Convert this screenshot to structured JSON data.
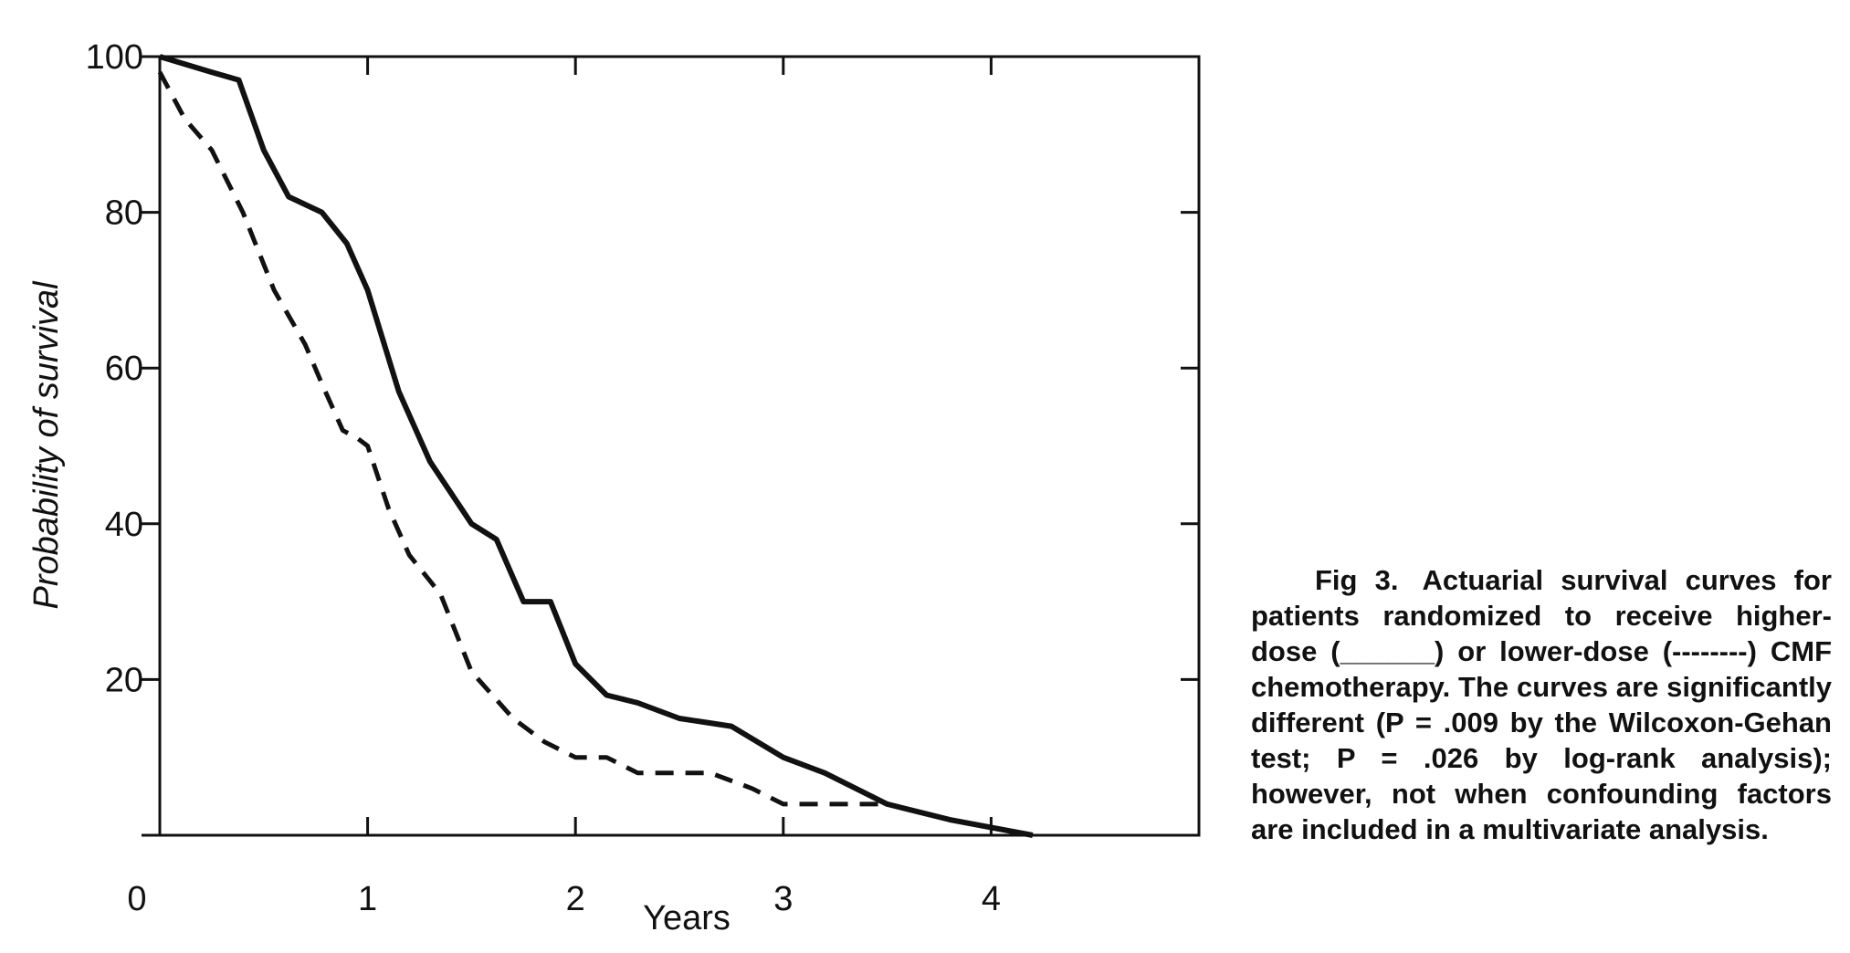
{
  "chart_data": {
    "type": "line",
    "title": "",
    "xlabel": "Years",
    "ylabel": "Probability of survival",
    "xlim": [
      0,
      5
    ],
    "ylim": [
      0,
      100
    ],
    "x_ticks": [
      0,
      1,
      2,
      3,
      4,
      5
    ],
    "x_tick_labels": [
      "0",
      "1",
      "2",
      "3",
      "4"
    ],
    "y_ticks": [
      0,
      20,
      40,
      60,
      80,
      100
    ],
    "y_tick_labels": [
      "20",
      "40",
      "60",
      "80",
      "100"
    ],
    "grid": false,
    "series": [
      {
        "style": "solid",
        "x": [
          0,
          0.25,
          0.38,
          0.5,
          0.62,
          0.78,
          0.9,
          1.0,
          1.15,
          1.3,
          1.5,
          1.62,
          1.75,
          1.88,
          2.0,
          2.15,
          2.3,
          2.5,
          2.75,
          3.0,
          3.2,
          3.5,
          3.8,
          4.2
        ],
        "y": [
          100,
          98,
          97,
          88,
          82,
          80,
          76,
          70,
          57,
          48,
          40,
          38,
          30,
          30,
          22,
          18,
          17,
          15,
          14,
          10,
          8,
          4,
          2,
          0
        ]
      },
      {
        "style": "dashed",
        "x": [
          0,
          0.12,
          0.25,
          0.4,
          0.55,
          0.7,
          0.78,
          0.88,
          0.95,
          1.0,
          1.1,
          1.2,
          1.35,
          1.5,
          1.7,
          1.85,
          2.0,
          2.15,
          2.3,
          2.5,
          2.65,
          2.85,
          3.0,
          3.5
        ],
        "y": [
          98,
          92,
          88,
          80,
          70,
          63,
          58,
          52,
          51,
          50,
          42,
          36,
          31,
          21,
          15,
          12,
          10,
          10,
          8,
          8,
          8,
          6,
          4,
          4
        ]
      }
    ]
  },
  "chart_labels": {
    "origin_label": "0"
  },
  "caption": {
    "figure_label": "Fig 3.",
    "text": "Actuarial survival curves for patients randomized to receive higher-dose (______) or lower-dose (--------) CMF chemotherapy. The curves are significantly different (P = .009 by the Wilcoxon-Gehan test; P = .026 by log-rank analysis); however, not when confounding factors are included in a multivariate analysis."
  },
  "colors": {
    "ink": "#111111",
    "background": "#ffffff"
  }
}
